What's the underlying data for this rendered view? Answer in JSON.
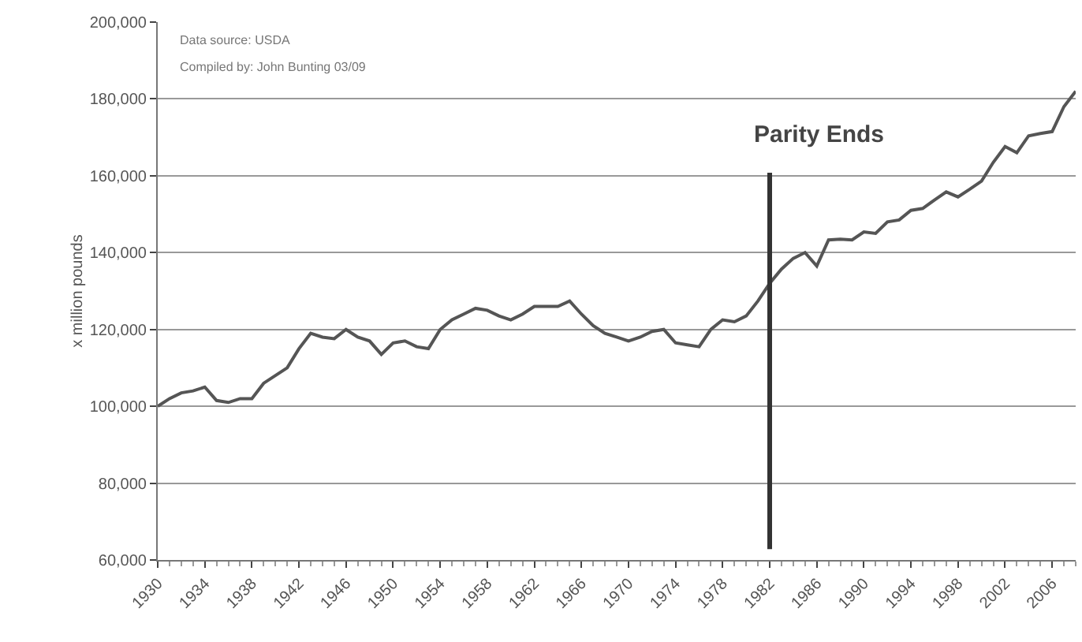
{
  "chart_data": {
    "type": "line",
    "ylabel": "x million pounds",
    "annotations": [
      "Data source: USDA",
      "Compiled by: John Bunting 03/09"
    ],
    "x": [
      1930,
      1931,
      1932,
      1933,
      1934,
      1935,
      1936,
      1937,
      1938,
      1939,
      1940,
      1941,
      1942,
      1943,
      1944,
      1945,
      1946,
      1947,
      1948,
      1949,
      1950,
      1951,
      1952,
      1953,
      1954,
      1955,
      1956,
      1957,
      1958,
      1959,
      1960,
      1961,
      1962,
      1963,
      1964,
      1965,
      1966,
      1967,
      1968,
      1969,
      1970,
      1971,
      1972,
      1973,
      1974,
      1975,
      1976,
      1977,
      1978,
      1979,
      1980,
      1981,
      1982,
      1983,
      1984,
      1985,
      1986,
      1987,
      1988,
      1989,
      1990,
      1991,
      1992,
      1993,
      1994,
      1995,
      1996,
      1997,
      1998,
      1999,
      2000,
      2001,
      2002,
      2003,
      2004,
      2005,
      2006,
      2007,
      2008
    ],
    "series": [
      {
        "color": "#555555",
        "values": [
          100000,
          102000,
          103500,
          104000,
          105000,
          101500,
          101000,
          102000,
          102000,
          106000,
          108000,
          110000,
          115000,
          119000,
          118000,
          117600,
          120000,
          118000,
          117000,
          113500,
          116500,
          117000,
          115500,
          115000,
          120000,
          122500,
          124000,
          125500,
          125000,
          123500,
          122500,
          124000,
          126000,
          126000,
          126000,
          127400,
          124000,
          121000,
          119000,
          118000,
          117000,
          118000,
          119500,
          120000,
          116500,
          116000,
          115500,
          120000,
          122500,
          122000,
          123500,
          127400,
          132000,
          135700,
          138500,
          140000,
          136500,
          143300,
          143500,
          143300,
          145400,
          145000,
          148000,
          148500,
          151000,
          151500,
          153700,
          155800,
          154500,
          156500,
          158600,
          163500,
          167600,
          166000,
          170400,
          171000,
          171500,
          178000,
          182000
        ]
      }
    ],
    "xlim": [
      1930,
      2008
    ],
    "xticks": [
      1930,
      1934,
      1938,
      1942,
      1946,
      1950,
      1954,
      1958,
      1962,
      1966,
      1970,
      1974,
      1978,
      1982,
      1986,
      1990,
      1994,
      1998,
      2002,
      2006
    ],
    "ylim": [
      60000,
      200000
    ],
    "yticks": [
      {
        "value": 60000,
        "label": "60,000"
      },
      {
        "value": 80000,
        "label": "80,000"
      },
      {
        "value": 100000,
        "label": "100,000"
      },
      {
        "value": 120000,
        "label": "120,000"
      },
      {
        "value": 140000,
        "label": "140,000"
      },
      {
        "value": 160000,
        "label": "160,000"
      },
      {
        "value": 180000,
        "label": "180,000"
      },
      {
        "value": 200000,
        "label": "200,000"
      }
    ],
    "grid": "y",
    "marker": "none",
    "line_style": "solid",
    "ref_lines": [
      {
        "axis": "x",
        "value": 1982,
        "label": "Parity Ends",
        "color": "#333333"
      }
    ]
  }
}
